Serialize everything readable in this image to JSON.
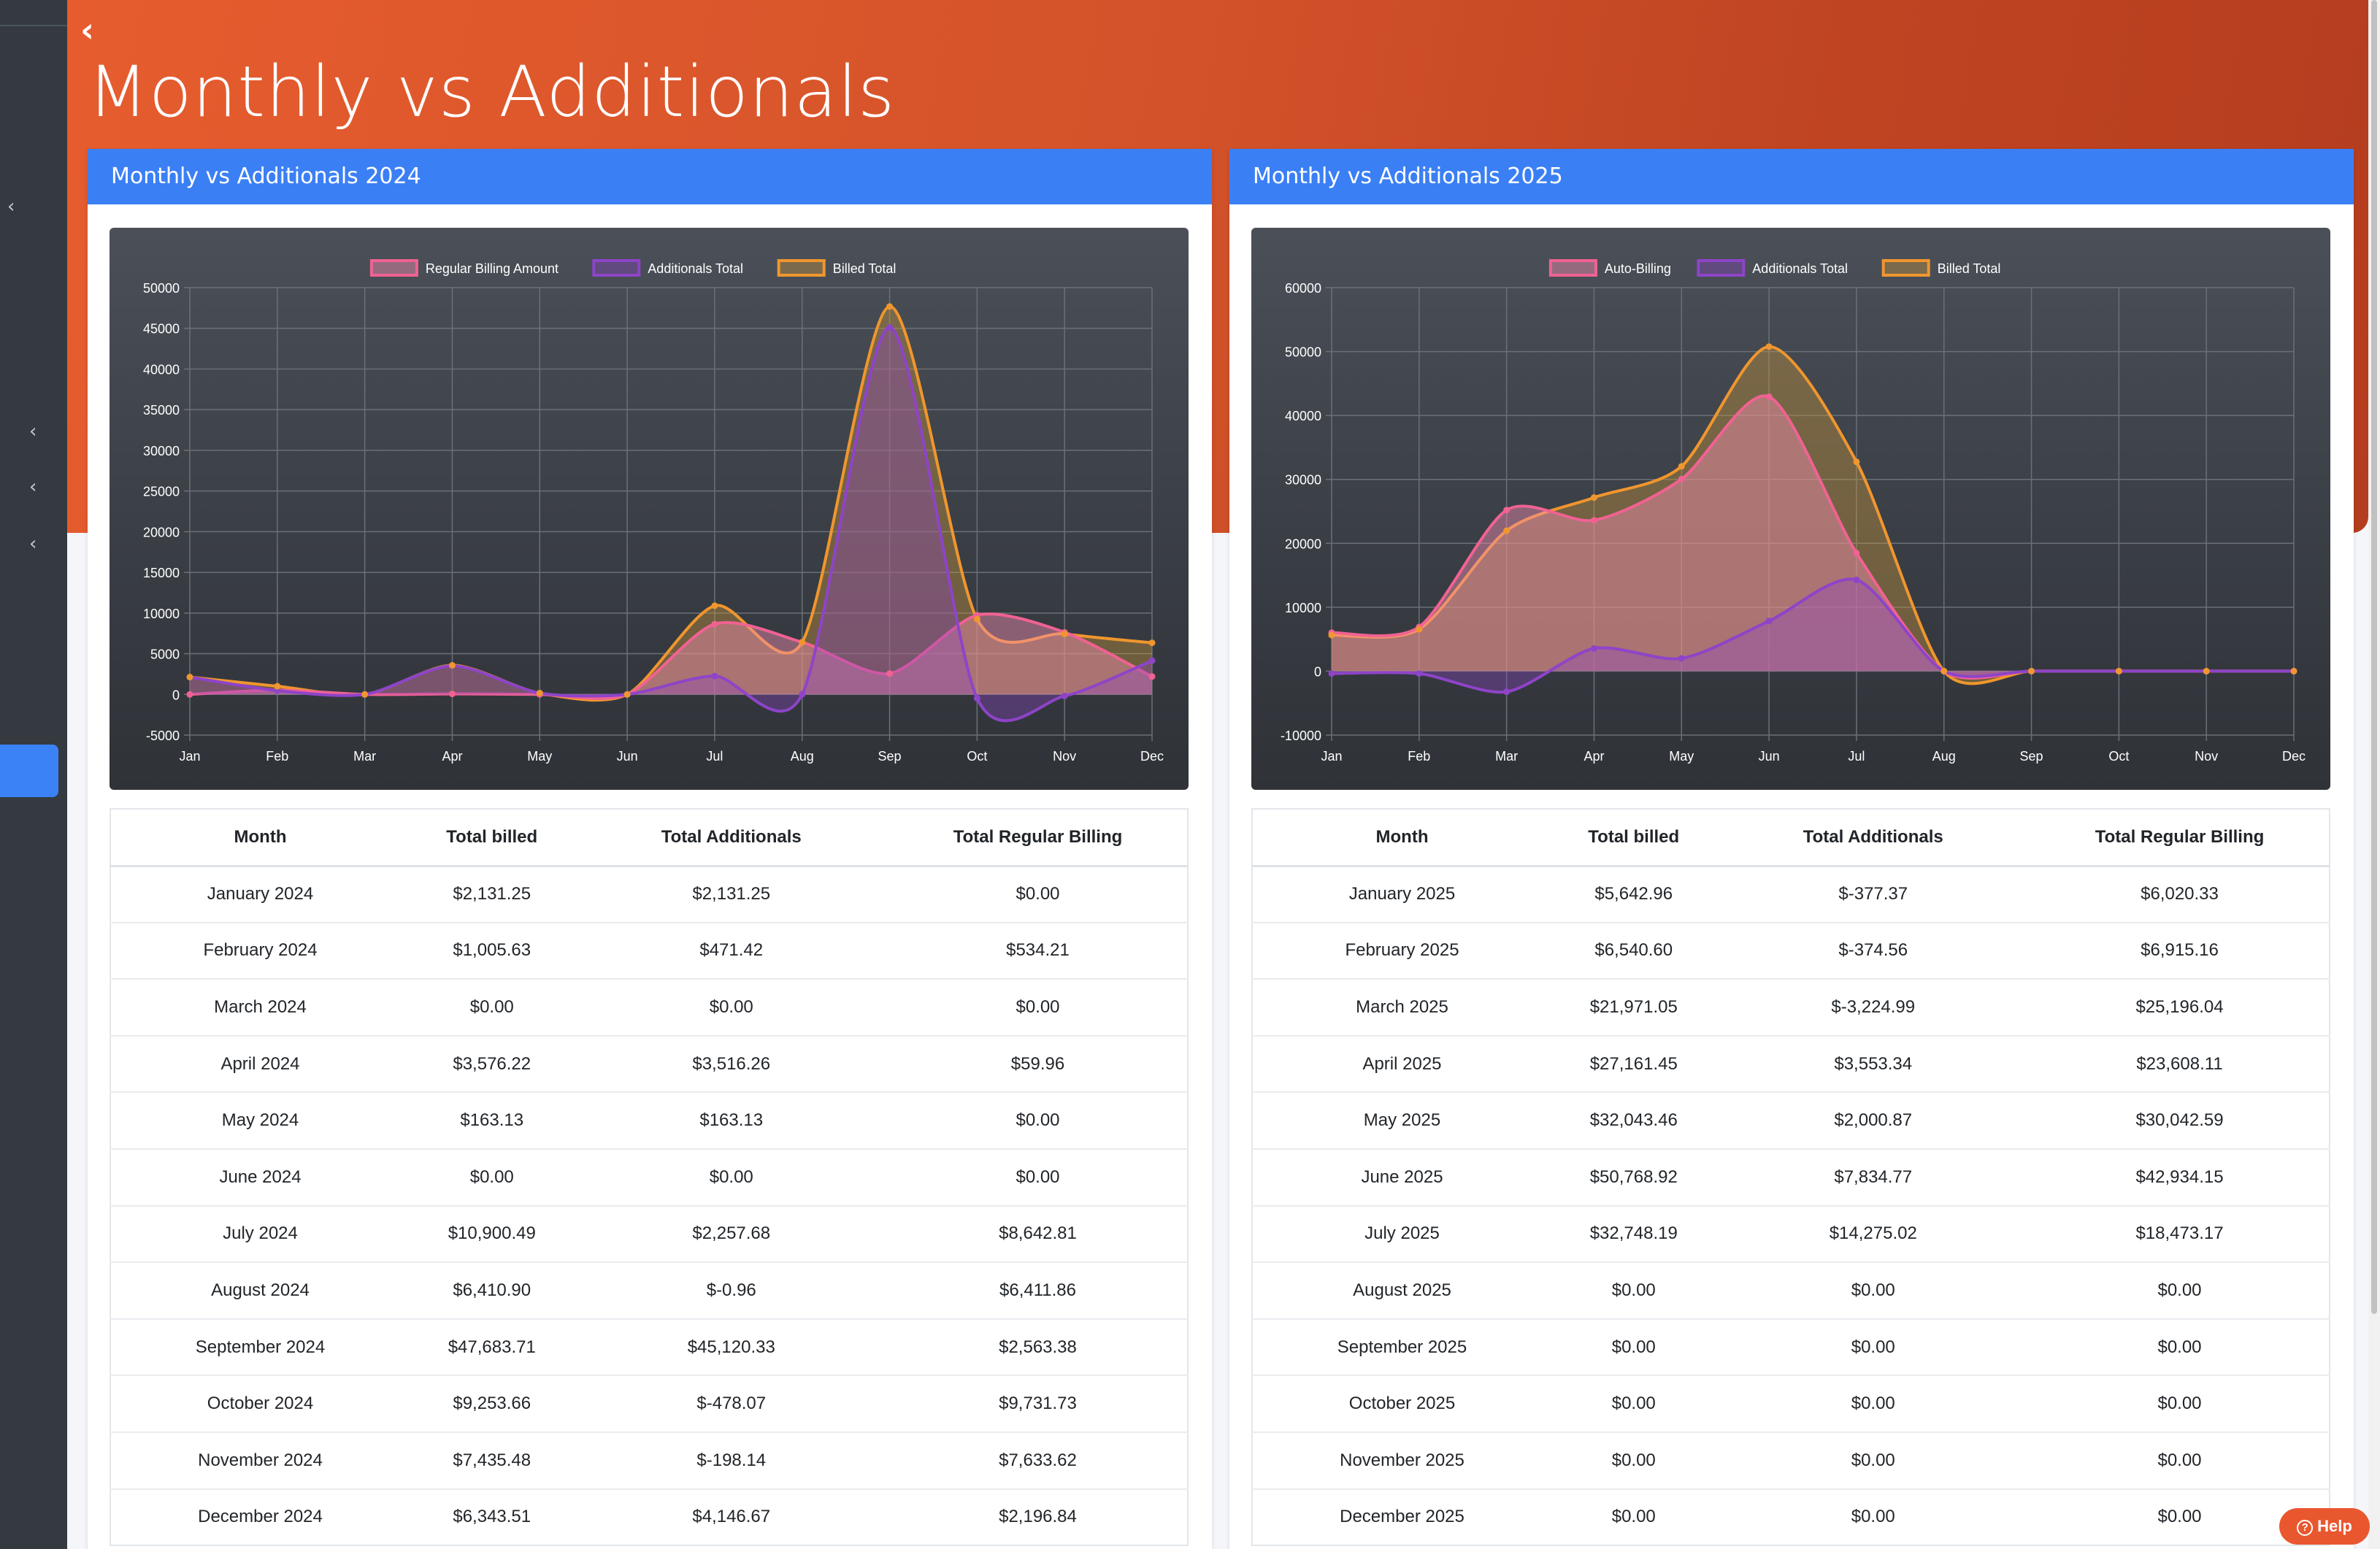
{
  "page": {
    "title": "Monthly vs Additionals"
  },
  "help": {
    "label": "Help"
  },
  "colors": {
    "accent": "#3b7ff5",
    "hero": "#d4532a",
    "regular": "#f06292",
    "additionals": "#8e44c8",
    "billed": "#f0962e"
  },
  "cards": [
    {
      "header": "Monthly vs Additionals 2024",
      "table": {
        "headers": [
          "Month",
          "Total billed",
          "Total Additionals",
          "Total Regular Billing"
        ],
        "rows": [
          [
            "January 2024",
            "$2,131.25",
            "$2,131.25",
            "$0.00"
          ],
          [
            "February 2024",
            "$1,005.63",
            "$471.42",
            "$534.21"
          ],
          [
            "March 2024",
            "$0.00",
            "$0.00",
            "$0.00"
          ],
          [
            "April 2024",
            "$3,576.22",
            "$3,516.26",
            "$59.96"
          ],
          [
            "May 2024",
            "$163.13",
            "$163.13",
            "$0.00"
          ],
          [
            "June 2024",
            "$0.00",
            "$0.00",
            "$0.00"
          ],
          [
            "July 2024",
            "$10,900.49",
            "$2,257.68",
            "$8,642.81"
          ],
          [
            "August 2024",
            "$6,410.90",
            "$-0.96",
            "$6,411.86"
          ],
          [
            "September 2024",
            "$47,683.71",
            "$45,120.33",
            "$2,563.38"
          ],
          [
            "October 2024",
            "$9,253.66",
            "$-478.07",
            "$9,731.73"
          ],
          [
            "November 2024",
            "$7,435.48",
            "$-198.14",
            "$7,633.62"
          ],
          [
            "December 2024",
            "$6,343.51",
            "$4,146.67",
            "$2,196.84"
          ]
        ]
      }
    },
    {
      "header": "Monthly vs Additionals 2025",
      "table": {
        "headers": [
          "Month",
          "Total billed",
          "Total Additionals",
          "Total Regular Billing"
        ],
        "rows": [
          [
            "January 2025",
            "$5,642.96",
            "$-377.37",
            "$6,020.33"
          ],
          [
            "February 2025",
            "$6,540.60",
            "$-374.56",
            "$6,915.16"
          ],
          [
            "March 2025",
            "$21,971.05",
            "$-3,224.99",
            "$25,196.04"
          ],
          [
            "April 2025",
            "$27,161.45",
            "$3,553.34",
            "$23,608.11"
          ],
          [
            "May 2025",
            "$32,043.46",
            "$2,000.87",
            "$30,042.59"
          ],
          [
            "June 2025",
            "$50,768.92",
            "$7,834.77",
            "$42,934.15"
          ],
          [
            "July 2025",
            "$32,748.19",
            "$14,275.02",
            "$18,473.17"
          ],
          [
            "August 2025",
            "$0.00",
            "$0.00",
            "$0.00"
          ],
          [
            "September 2025",
            "$0.00",
            "$0.00",
            "$0.00"
          ],
          [
            "October 2025",
            "$0.00",
            "$0.00",
            "$0.00"
          ],
          [
            "November 2025",
            "$0.00",
            "$0.00",
            "$0.00"
          ],
          [
            "December 2025",
            "$0.00",
            "$0.00",
            "$0.00"
          ]
        ]
      }
    }
  ],
  "chart_data": [
    {
      "type": "area",
      "categories": [
        "Jan",
        "Feb",
        "Mar",
        "Apr",
        "May",
        "Jun",
        "Jul",
        "Aug",
        "Sep",
        "Oct",
        "Nov",
        "Dec"
      ],
      "ylim": [
        -5000,
        50000
      ],
      "yticks": [
        -5000,
        0,
        5000,
        10000,
        15000,
        20000,
        25000,
        30000,
        35000,
        40000,
        45000,
        50000
      ],
      "grid": true,
      "legend_position": "top",
      "series": [
        {
          "name": "Regular Billing Amount",
          "color": "#f06292",
          "values": [
            0,
            534.21,
            0,
            59.96,
            0,
            0,
            8642.81,
            6411.86,
            2563.38,
            9731.73,
            7633.62,
            2196.84
          ]
        },
        {
          "name": "Additionals Total",
          "color": "#8e44c8",
          "values": [
            2131.25,
            471.42,
            0,
            3516.26,
            163.13,
            0,
            2257.68,
            -0.96,
            45120.33,
            -478.07,
            -198.14,
            4146.67
          ]
        },
        {
          "name": "Billed Total",
          "color": "#f0962e",
          "values": [
            2131.25,
            1005.63,
            0,
            3576.22,
            163.13,
            0,
            10900.49,
            6410.9,
            47683.71,
            9253.66,
            7435.48,
            6343.51
          ]
        }
      ]
    },
    {
      "type": "area",
      "categories": [
        "Jan",
        "Feb",
        "Mar",
        "Apr",
        "May",
        "Jun",
        "Jul",
        "Aug",
        "Sep",
        "Oct",
        "Nov",
        "Dec"
      ],
      "ylim": [
        -10000,
        60000
      ],
      "yticks": [
        -10000,
        0,
        10000,
        20000,
        30000,
        40000,
        50000,
        60000
      ],
      "grid": true,
      "legend_position": "top",
      "series": [
        {
          "name": "Auto-Billing",
          "color": "#f06292",
          "values": [
            6020.33,
            6915.16,
            25196.04,
            23608.11,
            30042.59,
            42934.15,
            18473.17,
            0,
            0,
            0,
            0,
            0
          ]
        },
        {
          "name": "Additionals Total",
          "color": "#8e44c8",
          "values": [
            -377.37,
            -374.56,
            -3224.99,
            3553.34,
            2000.87,
            7834.77,
            14275.02,
            0,
            0,
            0,
            0,
            0
          ]
        },
        {
          "name": "Billed Total",
          "color": "#f0962e",
          "values": [
            5642.96,
            6540.6,
            21971.05,
            27161.45,
            32043.46,
            50768.92,
            32748.19,
            0,
            0,
            0,
            0,
            0
          ]
        }
      ]
    }
  ]
}
